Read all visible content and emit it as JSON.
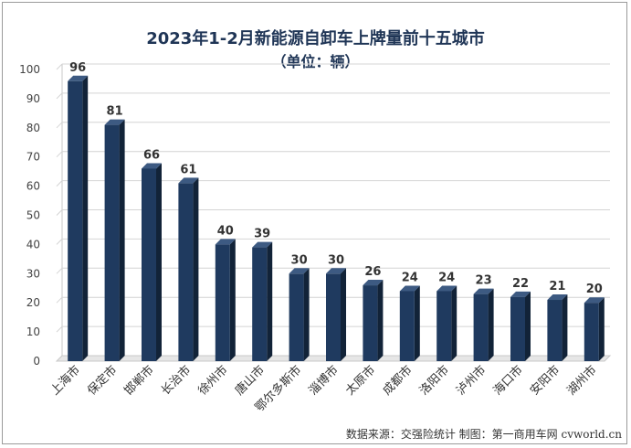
{
  "chart_data": {
    "type": "bar",
    "title": "2023年1-2月新能源自卸车上牌量前十五城市",
    "subtitle": "（单位：辆）",
    "categories": [
      "上海市",
      "保定市",
      "邯郸市",
      "长治市",
      "徐州市",
      "唐山市",
      "鄂尔多斯市",
      "淄博市",
      "太原市",
      "成都市",
      "洛阳市",
      "泸州市",
      "海口市",
      "安阳市",
      "湖州市"
    ],
    "values": [
      96,
      81,
      66,
      61,
      40,
      39,
      30,
      30,
      26,
      24,
      24,
      23,
      22,
      21,
      20
    ],
    "ylim": [
      0,
      100
    ],
    "yticks": [
      0,
      10,
      20,
      30,
      40,
      50,
      60,
      70,
      80,
      90,
      100
    ],
    "grid": true,
    "bar_color": "#1f3a5f",
    "source": "数据来源：交强险统计  制图：第一商用车网 cvworld.cn"
  }
}
